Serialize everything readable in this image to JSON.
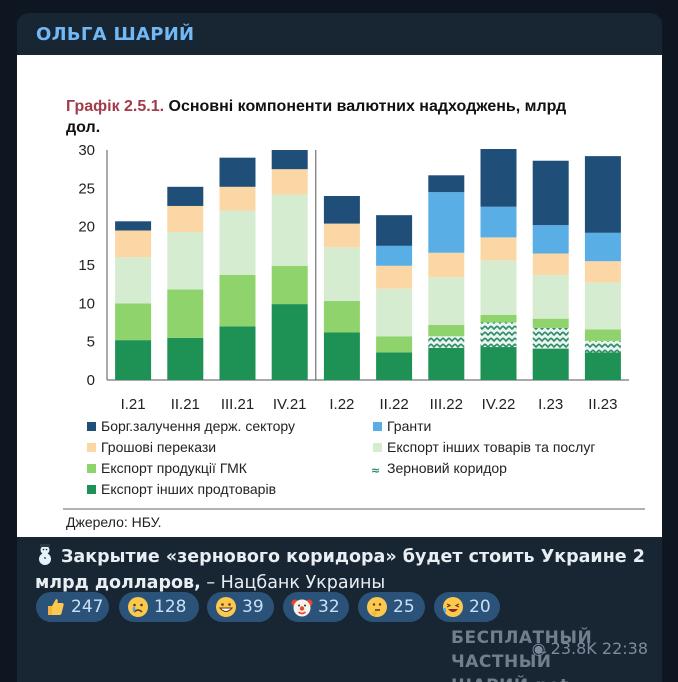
{
  "post": {
    "channel_name": "ОЛЬГА ШАРИЙ",
    "caption_bold": "Закрытие «зернового коридора» будет стоить Украине 2 млрд долларов,",
    "caption_rest": " – Нацбанк Украины",
    "views": "23.8K",
    "time": "22:38",
    "watermark_line1": "БЕСПЛАТНЫЙ ЧАСТНЫЙ",
    "watermark_line2": "ШАРИЙ.net"
  },
  "reactions": [
    {
      "icon": "thumbs-up-icon",
      "count": "247"
    },
    {
      "icon": "crying-face-icon",
      "count": "128"
    },
    {
      "icon": "grinning-face-icon",
      "count": "39"
    },
    {
      "icon": "clown-face-icon",
      "count": "32"
    },
    {
      "icon": "thinking-face-icon",
      "count": "25"
    },
    {
      "icon": "laughing-face-icon",
      "count": "20"
    }
  ],
  "colors": {
    "debt": "#1f4e79",
    "grants": "#5aaee6",
    "remittances": "#fbd7a6",
    "other_goods": "#d6ecd0",
    "gmk": "#8ed36b",
    "other_food": "#1e9154",
    "grain_corridor": "#2e8b6a"
  },
  "chart_data": {
    "type": "bar",
    "stacked": true,
    "title": "Графік 2.5.1. Основні компоненти валютних надходжень, млрд дол.",
    "title_prefix": "Графік 2.5.1.",
    "title_line1": " Основні компоненти валютних надходжень, млрд",
    "title_line2": "дол.",
    "source": "Джерело: НБУ.",
    "categories": [
      "I.21",
      "II.21",
      "III.21",
      "IV.21",
      "I.22",
      "II.22",
      "III.22",
      "IV.22",
      "I.23",
      "II.23"
    ],
    "ylim": [
      0,
      30
    ],
    "yticks": [
      0,
      5,
      10,
      15,
      20,
      25,
      30
    ],
    "series": [
      {
        "name": "Експорт інших продтоварів",
        "key": "other_food",
        "values": [
          5.2,
          5.5,
          7.0,
          9.9,
          6.2,
          3.6,
          4.2,
          4.3,
          4.1,
          3.6
        ]
      },
      {
        "name": "Зерновий коридор",
        "key": "grain_corridor",
        "values": [
          0,
          0,
          0,
          0,
          0,
          0,
          1.5,
          3.2,
          2.7,
          1.5
        ]
      },
      {
        "name": "Експорт продукції ГМК",
        "key": "gmk",
        "values": [
          4.8,
          6.3,
          6.7,
          5.0,
          4.1,
          2.1,
          1.5,
          1.0,
          1.2,
          1.5
        ]
      },
      {
        "name": "Експорт інших товарів та послуг",
        "key": "other_goods",
        "values": [
          6.0,
          7.5,
          8.4,
          9.3,
          7.0,
          6.2,
          6.2,
          7.1,
          5.7,
          6.1
        ]
      },
      {
        "name": "Грошові перекази",
        "key": "remittances",
        "values": [
          3.5,
          3.4,
          3.1,
          3.3,
          3.1,
          3.0,
          3.2,
          3.0,
          2.8,
          2.8
        ]
      },
      {
        "name": "Гранти",
        "key": "grants",
        "values": [
          0,
          0,
          0,
          0,
          0,
          2.6,
          7.9,
          4.0,
          3.7,
          3.7
        ]
      },
      {
        "name": "Борг.залучення держ. сектору",
        "key": "debt",
        "values": [
          1.2,
          2.5,
          3.8,
          2.5,
          3.6,
          4.0,
          2.2,
          8.4,
          8.4,
          10.0
        ]
      }
    ],
    "legend": [
      {
        "label": "Борг.залучення держ. сектору",
        "key": "debt"
      },
      {
        "label": "Гранти",
        "key": "grants"
      },
      {
        "label": "Грошові перекази",
        "key": "remittances"
      },
      {
        "label": "Експорт інших товарів та послуг",
        "key": "other_goods"
      },
      {
        "label": "Експорт продукції ГМК",
        "key": "gmk"
      },
      {
        "label": "Зерновий коридор",
        "key": "grain_corridor"
      },
      {
        "label": "Експорт інших продтоварів",
        "key": "other_food"
      }
    ]
  }
}
